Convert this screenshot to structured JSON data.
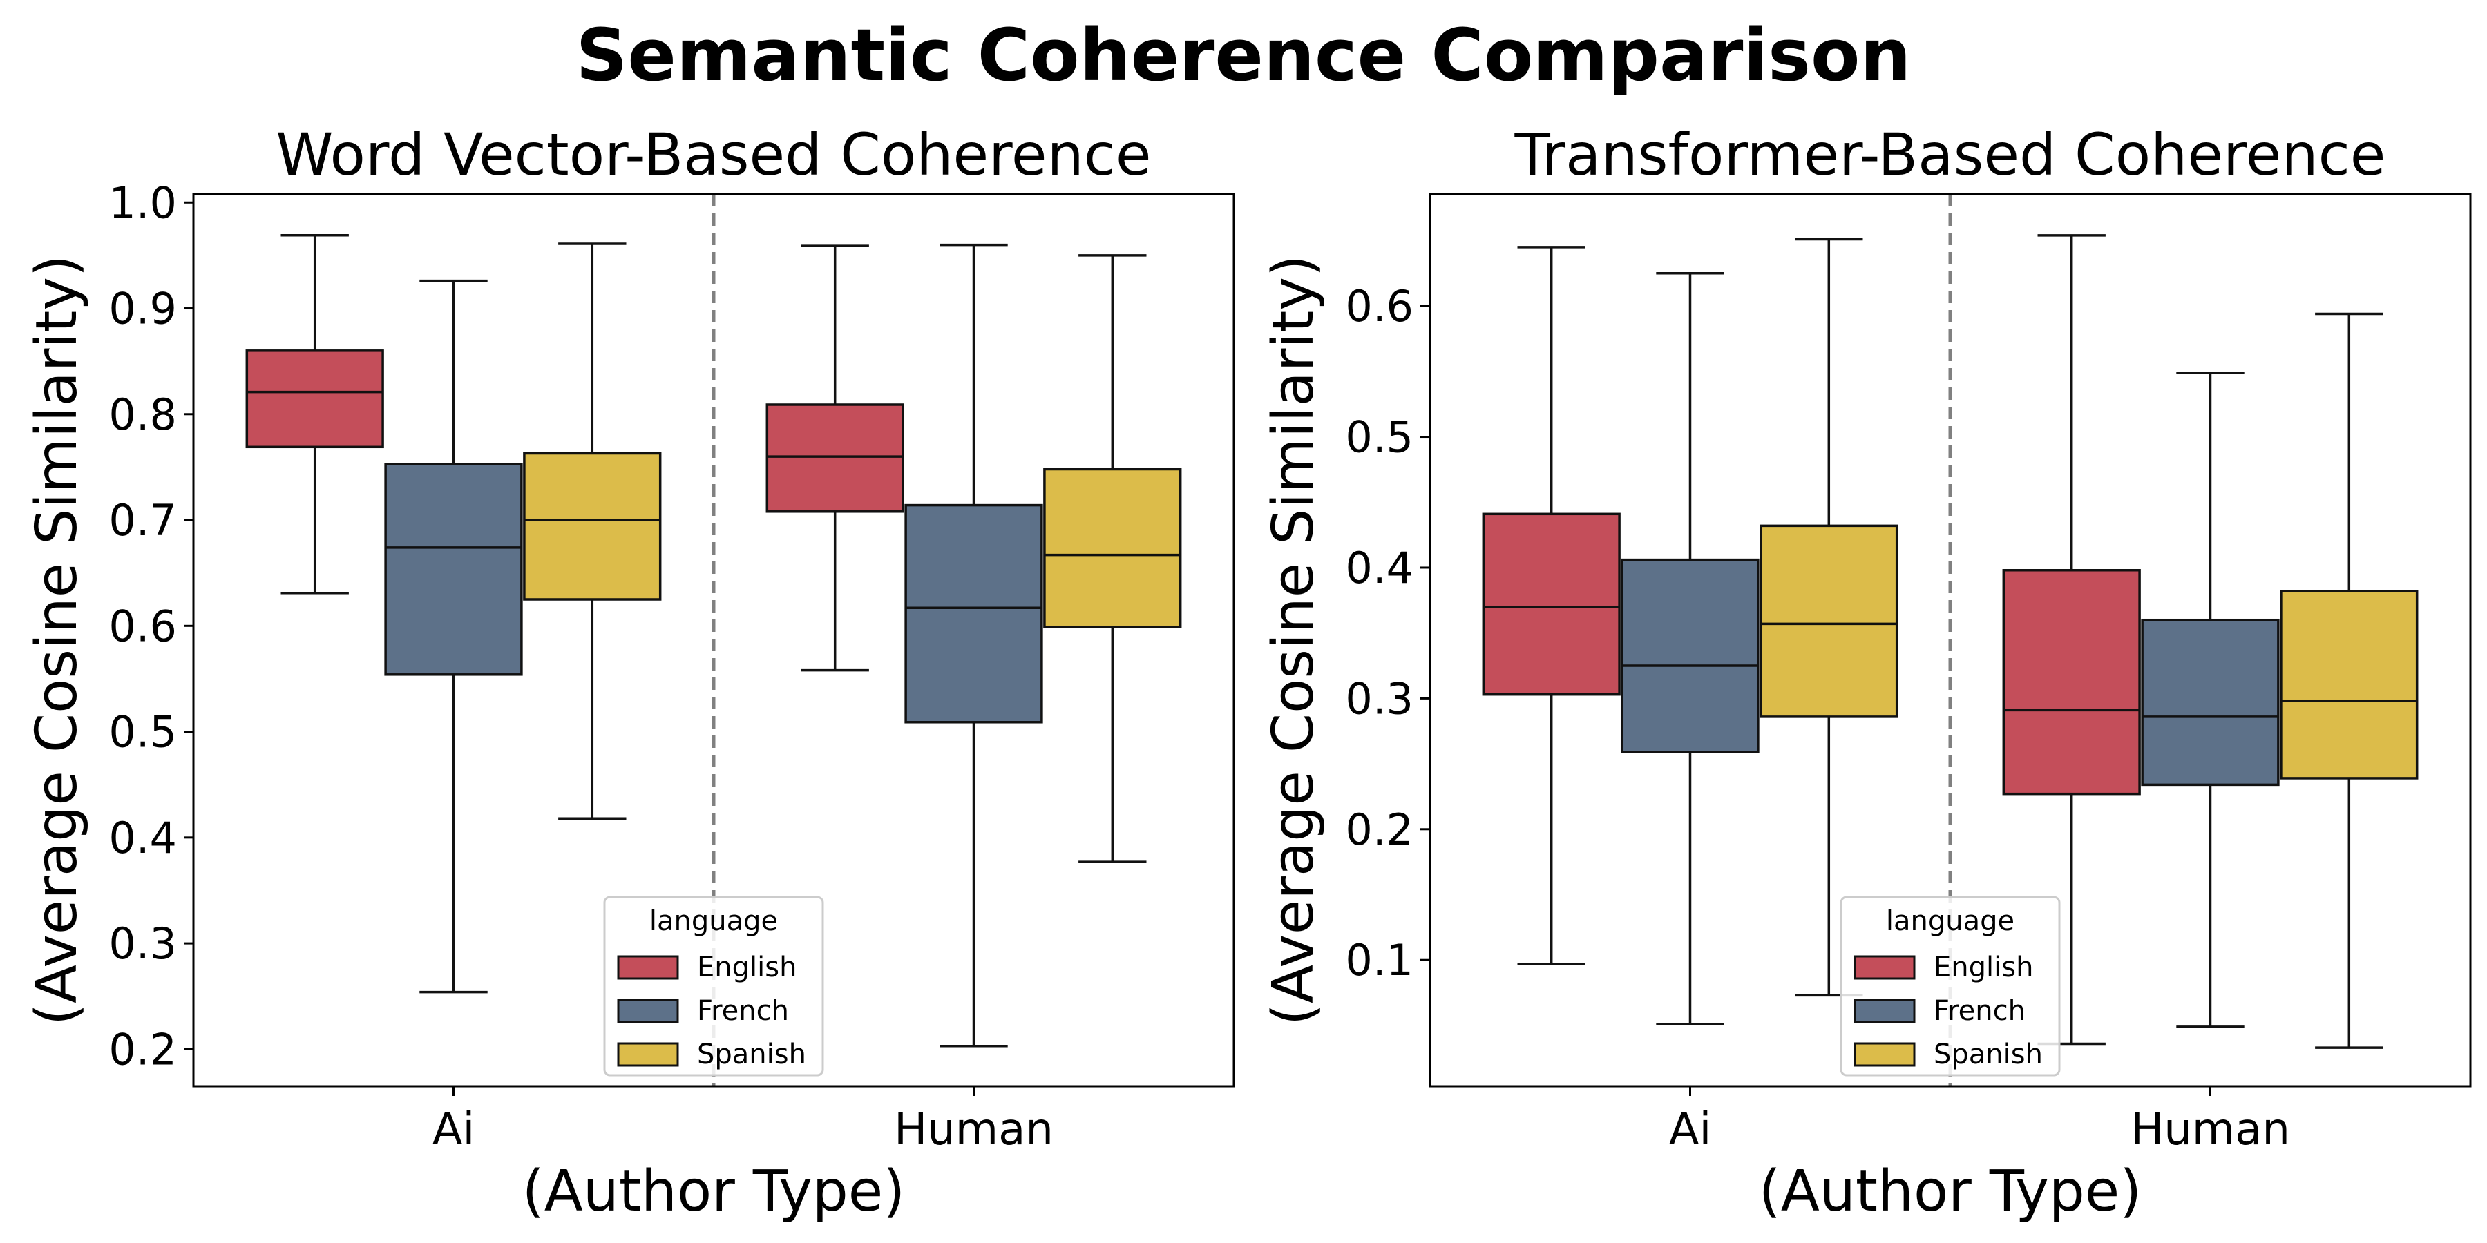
{
  "title": "Semantic Coherence Comparison",
  "legend": {
    "title": "language",
    "entries": [
      {
        "name": "English",
        "color": "#c44e5a"
      },
      {
        "name": "French",
        "color": "#5d7189"
      },
      {
        "name": "Spanish",
        "color": "#dcbc4a"
      }
    ]
  },
  "chart_data": [
    {
      "type": "box",
      "title": "Word Vector-Based Coherence",
      "xlabel": "(Author Type)",
      "ylabel": "(Average Cosine Similarity)",
      "categories": [
        "Ai",
        "Human"
      ],
      "ylim": [
        0.165,
        1.008
      ],
      "yticks": [
        "0.2",
        "0.3",
        "0.4",
        "0.5",
        "0.6",
        "0.7",
        "0.8",
        "0.9",
        "1.0"
      ],
      "ytick_values": [
        0.2,
        0.3,
        0.4,
        0.5,
        0.6,
        0.7,
        0.8,
        0.9,
        1.0
      ],
      "divider_between_categories": true,
      "legend_position": "lower center",
      "series": [
        {
          "name": "English",
          "color": "#c44e5a",
          "boxes": [
            {
              "category": "Ai",
              "min": 0.631,
              "q1": 0.769,
              "median": 0.821,
              "q3": 0.86,
              "max": 0.969
            },
            {
              "category": "Human",
              "min": 0.558,
              "q1": 0.708,
              "median": 0.76,
              "q3": 0.809,
              "max": 0.959
            }
          ]
        },
        {
          "name": "French",
          "color": "#5d7189",
          "boxes": [
            {
              "category": "Ai",
              "min": 0.254,
              "q1": 0.554,
              "median": 0.674,
              "q3": 0.753,
              "max": 0.926
            },
            {
              "category": "Human",
              "min": 0.203,
              "q1": 0.509,
              "median": 0.617,
              "q3": 0.714,
              "max": 0.96
            }
          ]
        },
        {
          "name": "Spanish",
          "color": "#dcbc4a",
          "boxes": [
            {
              "category": "Ai",
              "min": 0.418,
              "q1": 0.625,
              "median": 0.7,
              "q3": 0.763,
              "max": 0.961
            },
            {
              "category": "Human",
              "min": 0.377,
              "q1": 0.599,
              "median": 0.667,
              "q3": 0.748,
              "max": 0.95
            }
          ]
        }
      ]
    },
    {
      "type": "box",
      "title": "Transformer-Based Coherence",
      "xlabel": "(Author Type)",
      "ylabel": "(Average Cosine Similarity)",
      "categories": [
        "Ai",
        "Human"
      ],
      "ylim": [
        0.0035,
        0.6856
      ],
      "yticks": [
        "0.1",
        "0.2",
        "0.3",
        "0.4",
        "0.5",
        "0.6"
      ],
      "ytick_values": [
        0.1,
        0.2,
        0.3,
        0.4,
        0.5,
        0.6
      ],
      "divider_between_categories": true,
      "legend_position": "lower center",
      "series": [
        {
          "name": "English",
          "color": "#c44e5a",
          "boxes": [
            {
              "category": "Ai",
              "min": 0.097,
              "q1": 0.303,
              "median": 0.37,
              "q3": 0.441,
              "max": 0.645
            },
            {
              "category": "Human",
              "min": 0.036,
              "q1": 0.227,
              "median": 0.291,
              "q3": 0.398,
              "max": 0.654
            }
          ]
        },
        {
          "name": "French",
          "color": "#5d7189",
          "boxes": [
            {
              "category": "Ai",
              "min": 0.051,
              "q1": 0.259,
              "median": 0.325,
              "q3": 0.406,
              "max": 0.625
            },
            {
              "category": "Human",
              "min": 0.049,
              "q1": 0.234,
              "median": 0.286,
              "q3": 0.36,
              "max": 0.549
            }
          ]
        },
        {
          "name": "Spanish",
          "color": "#dcbc4a",
          "boxes": [
            {
              "category": "Ai",
              "min": 0.073,
              "q1": 0.286,
              "median": 0.357,
              "q3": 0.432,
              "max": 0.651
            },
            {
              "category": "Human",
              "min": 0.033,
              "q1": 0.239,
              "median": 0.298,
              "q3": 0.382,
              "max": 0.594
            }
          ]
        }
      ]
    }
  ]
}
